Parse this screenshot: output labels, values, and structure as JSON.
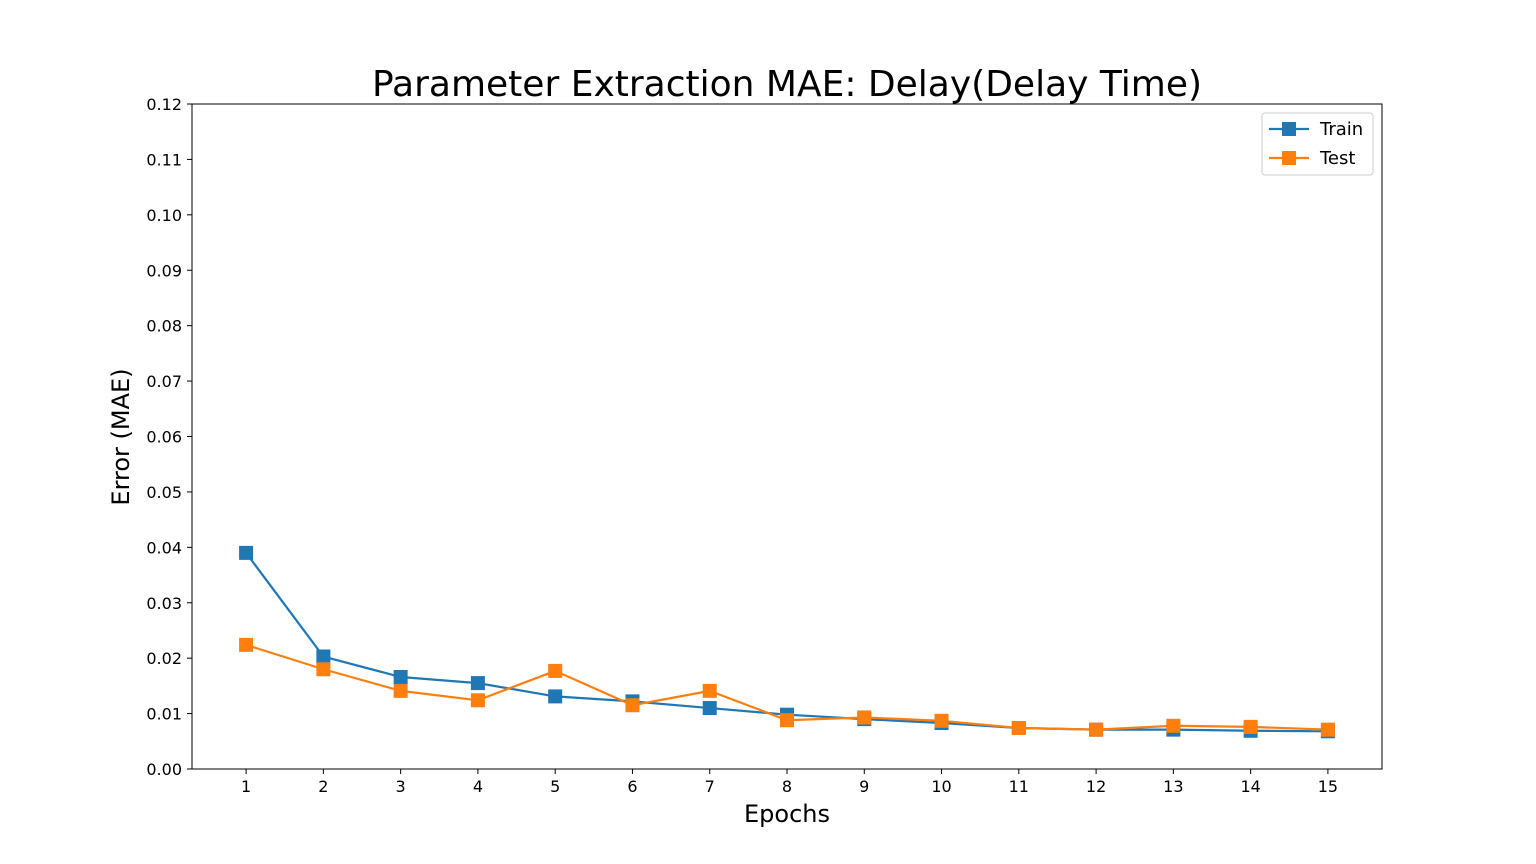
{
  "chart_data": {
    "type": "line",
    "title": "Parameter Extraction MAE: Delay(Delay Time)",
    "xlabel": "Epochs",
    "ylabel": "Error (MAE)",
    "x": [
      1,
      2,
      3,
      4,
      5,
      6,
      7,
      8,
      9,
      10,
      11,
      12,
      13,
      14,
      15
    ],
    "x_tick_labels": [
      "1",
      "2",
      "3",
      "4",
      "5",
      "6",
      "7",
      "8",
      "9",
      "10",
      "11",
      "12",
      "13",
      "14",
      "15"
    ],
    "xlim": [
      0.3,
      15.7
    ],
    "ylim": [
      0.0,
      0.12
    ],
    "y_ticks": [
      0.0,
      0.01,
      0.02,
      0.03,
      0.04,
      0.05,
      0.06,
      0.07,
      0.08,
      0.09,
      0.1,
      0.11,
      0.12
    ],
    "y_tick_labels": [
      "0.00",
      "0.01",
      "0.02",
      "0.03",
      "0.04",
      "0.05",
      "0.06",
      "0.07",
      "0.08",
      "0.09",
      "0.10",
      "0.11",
      "0.12"
    ],
    "grid": false,
    "legend_position": "top-right",
    "marker": "square",
    "series": [
      {
        "name": "Train",
        "color": "#1f77b4",
        "values": [
          0.039,
          0.0203,
          0.0166,
          0.0155,
          0.0131,
          0.0122,
          0.011,
          0.0098,
          0.009,
          0.0083,
          0.0074,
          0.0071,
          0.0071,
          0.0069,
          0.0068
        ]
      },
      {
        "name": "Test",
        "color": "#ff7f0e",
        "values": [
          0.0224,
          0.018,
          0.0141,
          0.0124,
          0.0177,
          0.0115,
          0.0141,
          0.0088,
          0.0093,
          0.0087,
          0.0074,
          0.0071,
          0.0078,
          0.0076,
          0.0071
        ]
      }
    ]
  }
}
